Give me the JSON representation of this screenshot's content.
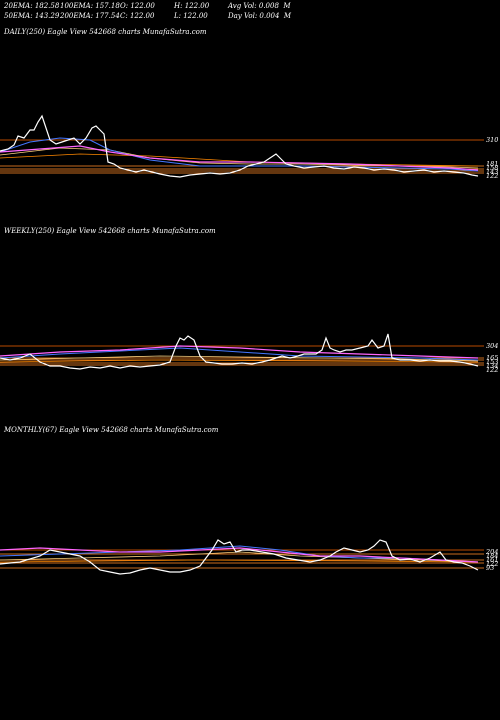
{
  "header": {
    "row1": [
      {
        "label": "20EMA:",
        "value": "182.58"
      },
      {
        "label": "100EMA:",
        "value": "157.18"
      },
      {
        "label": "O:",
        "value": "122.00"
      },
      {
        "label": "H:",
        "value": "122.00"
      },
      {
        "label": "Avg Vol:",
        "value": "0.008  M"
      }
    ],
    "row2": [
      {
        "label": "50EMA:",
        "value": "143.29"
      },
      {
        "label": "200EMA:",
        "value": "177.54"
      },
      {
        "label": "C:",
        "value": "122.00"
      },
      {
        "label": "L:",
        "value": "122.00"
      },
      {
        "label": "Day Vol:",
        "value": "0.004  M"
      }
    ]
  },
  "chart_data": [
    {
      "type": "line",
      "title": "DAILY(250) Eagle  View  542668  charts MunafaSutra.com",
      "right_labels": [
        "310",
        "181",
        "158",
        "143",
        "122"
      ],
      "colors": {
        "price": "#ffffff",
        "ema20": "#ff66ff",
        "ema50": "#4477ff",
        "ema100": "#ffd27f",
        "ema200": "#ff8800"
      }
    },
    {
      "type": "line",
      "title": "WEEKLY(250) Eagle  View  542668  charts MunafaSutra.com",
      "right_labels": [
        "304",
        "165",
        "153",
        "134",
        "122"
      ],
      "colors": {
        "price": "#ffffff",
        "ema20": "#ff66ff",
        "ema50": "#4477ff",
        "ema100": "#ffd27f",
        "ema200": "#ff8800"
      }
    },
    {
      "type": "line",
      "title": "MONTHLY(67) Eagle  View  542668  charts MunafaSutra.com",
      "right_labels": [
        "204",
        "184",
        "161",
        "122",
        "93"
      ],
      "colors": {
        "price": "#ffffff",
        "ema20": "#ff66ff",
        "ema50": "#4477ff",
        "ema100": "#ffd27f",
        "ema200": "#ff8800"
      }
    }
  ]
}
